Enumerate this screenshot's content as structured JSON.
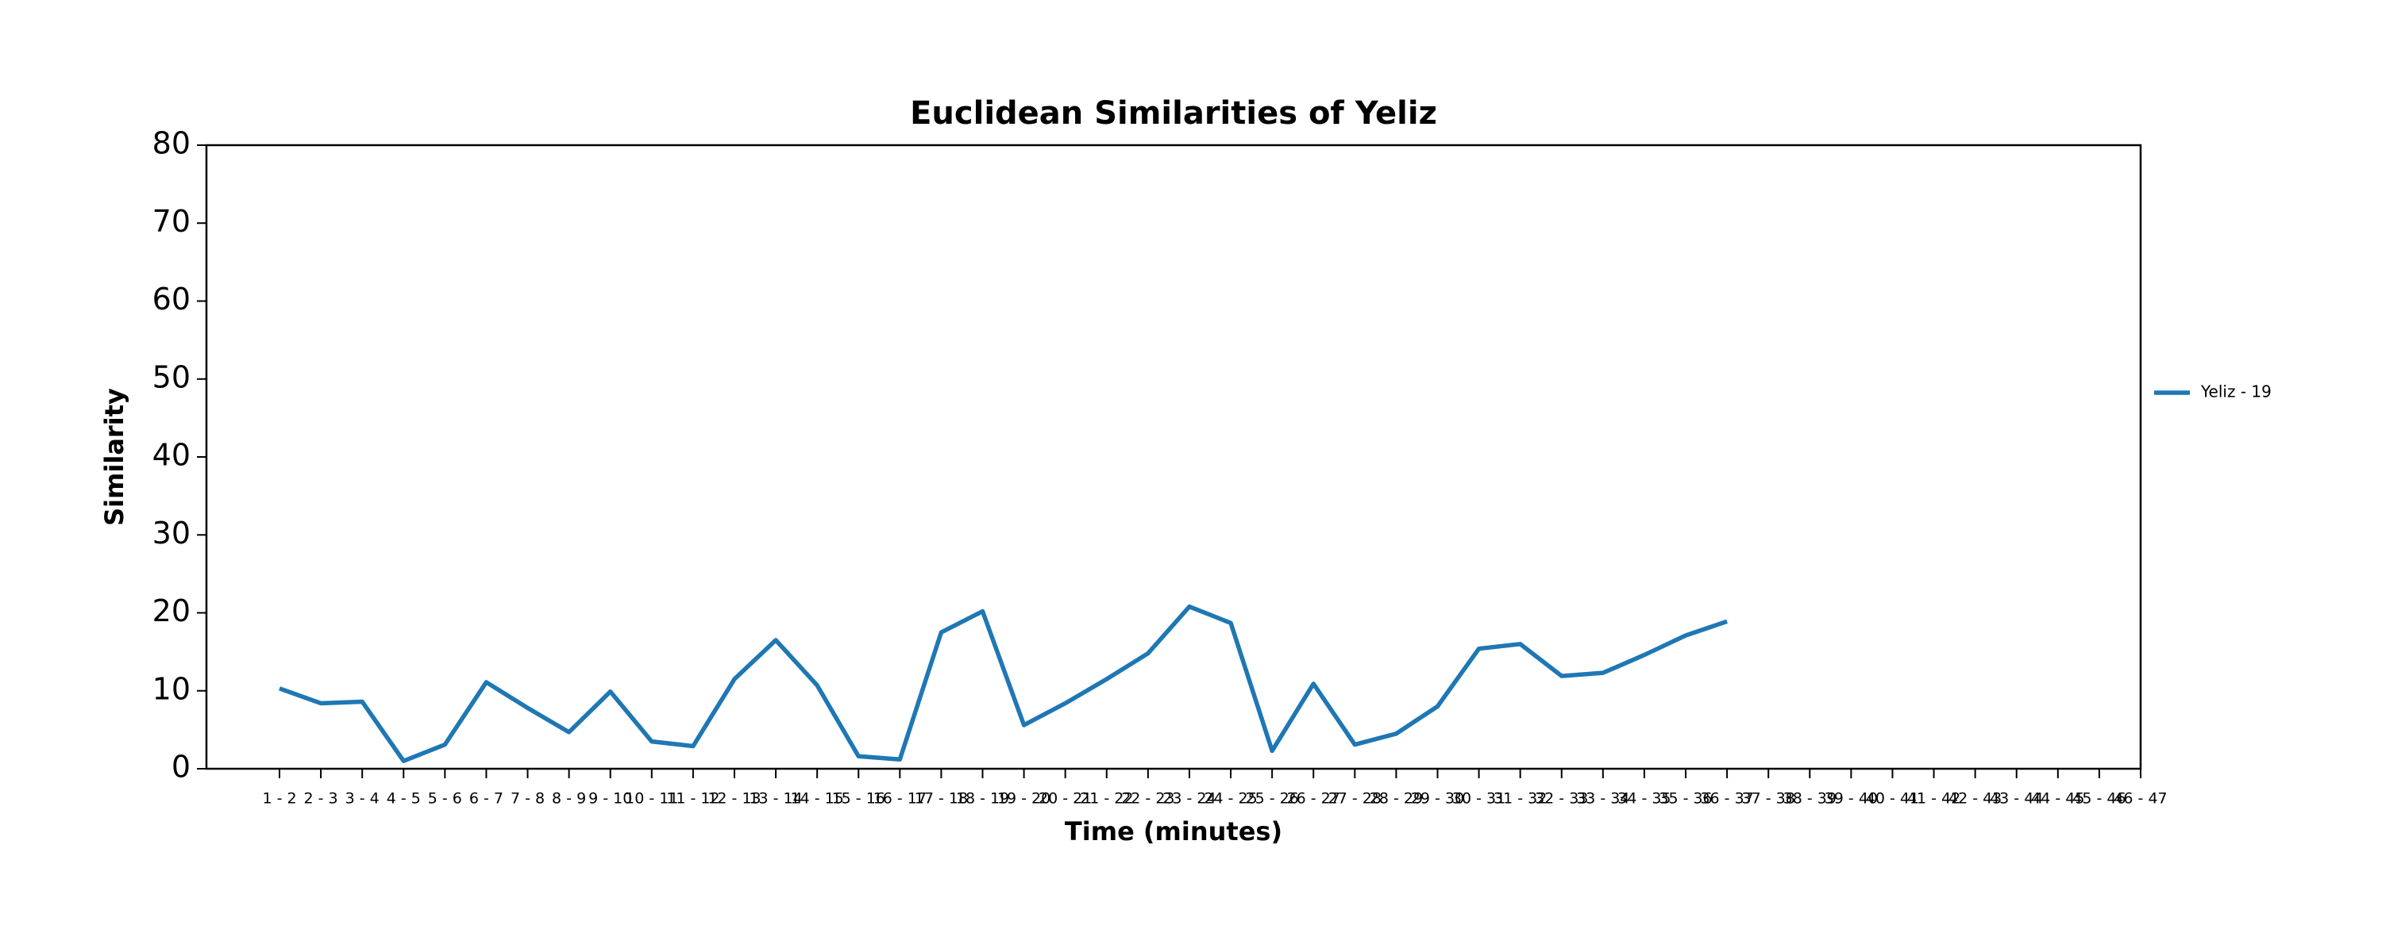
{
  "chart_data": {
    "type": "line",
    "title": "Euclidean Similarities of Yeliz",
    "x_label": "Time (minutes)",
    "y_label": "Similarity",
    "categories": [
      "1 - 2",
      "2 - 3",
      "3 - 4",
      "4 - 5",
      "5 - 6",
      "6 - 7",
      "7 - 8",
      "8 - 9",
      "9 - 10",
      "10 - 11",
      "11 - 12",
      "12 - 13",
      "13 - 14",
      "14 - 15",
      "15 - 16",
      "16 - 17",
      "17 - 18",
      "18 - 19",
      "19 - 20",
      "20 - 21",
      "21 - 22",
      "22 - 23",
      "23 - 24",
      "24 - 25",
      "25 - 26",
      "26 - 27",
      "27 - 28",
      "28 - 29",
      "29 - 30",
      "30 - 31",
      "31 - 32",
      "32 - 33",
      "33 - 34",
      "34 - 35",
      "35 - 36",
      "36 - 37",
      "37 - 38",
      "38 - 39",
      "39 - 40",
      "40 - 41",
      "41 - 42",
      "42 - 43",
      "43 - 44",
      "44 - 45",
      "45 - 46",
      "46 - 47"
    ],
    "series": [
      {
        "name": "Yeliz - 19",
        "color": "#1f77b4",
        "values": [
          10.3,
          8.4,
          8.6,
          1.0,
          3.1,
          11.1,
          7.8,
          4.7,
          9.9,
          3.5,
          2.9,
          11.5,
          16.5,
          10.7,
          1.6,
          1.2,
          17.5,
          20.2,
          5.6,
          8.4,
          11.5,
          14.8,
          20.8,
          18.7,
          2.3,
          10.9,
          3.1,
          4.5,
          8.0,
          15.4,
          16.0,
          11.9,
          12.3,
          14.6,
          17.1,
          18.9,
          null,
          null,
          null,
          null,
          null,
          null,
          null,
          null,
          null,
          null
        ]
      }
    ],
    "ylim": [
      0,
      80
    ],
    "yticks": [
      0,
      10,
      20,
      30,
      40,
      50,
      60,
      70,
      80
    ],
    "legend": "right"
  }
}
